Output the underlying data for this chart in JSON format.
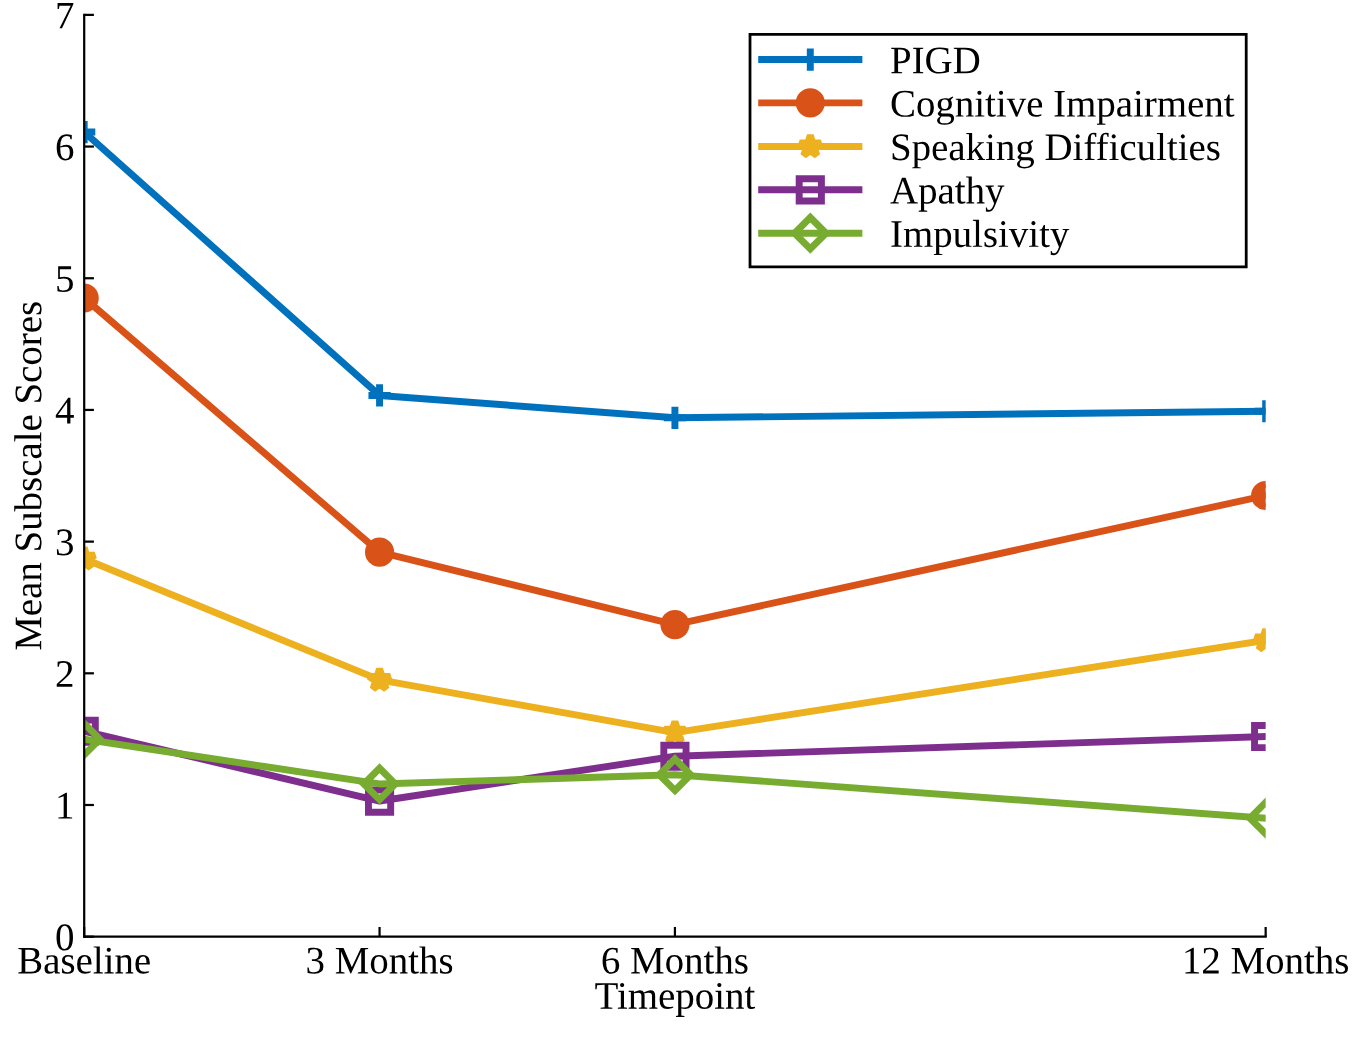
{
  "chart_data": {
    "type": "line",
    "xlabel": "Timepoint",
    "ylabel": "Mean Subscale Scores",
    "x": [
      0,
      3,
      6,
      12
    ],
    "xlim": [
      0,
      12
    ],
    "xticks": [
      {
        "value": 0,
        "label": "Baseline"
      },
      {
        "value": 3,
        "label": "3 Months"
      },
      {
        "value": 6,
        "label": "6 Months"
      },
      {
        "value": 12,
        "label": "12 Months"
      }
    ],
    "ylim": [
      0,
      7
    ],
    "yticks": [
      0,
      1,
      2,
      3,
      4,
      5,
      6,
      7
    ],
    "grid": false,
    "legend": "top right",
    "line_style": "solid",
    "series": [
      {
        "name": "PIGD",
        "color": "#0072bd",
        "marker": "cross",
        "values": [
          6.11,
          4.11,
          3.94,
          3.99
        ]
      },
      {
        "name": "Cognitive Impairment",
        "color": "#d95319",
        "marker": "circle",
        "values": [
          4.85,
          2.92,
          2.37,
          3.35
        ]
      },
      {
        "name": "Speaking Difficulties",
        "color": "#edb120",
        "marker": "star",
        "values": [
          2.87,
          1.95,
          1.55,
          2.25
        ]
      },
      {
        "name": "Apathy",
        "color": "#7e2f8e",
        "marker": "square",
        "values": [
          1.56,
          1.03,
          1.37,
          1.52
        ]
      },
      {
        "name": "Impulsivity",
        "color": "#77ac30",
        "marker": "diamond",
        "values": [
          1.5,
          1.16,
          1.23,
          0.9
        ]
      }
    ]
  }
}
